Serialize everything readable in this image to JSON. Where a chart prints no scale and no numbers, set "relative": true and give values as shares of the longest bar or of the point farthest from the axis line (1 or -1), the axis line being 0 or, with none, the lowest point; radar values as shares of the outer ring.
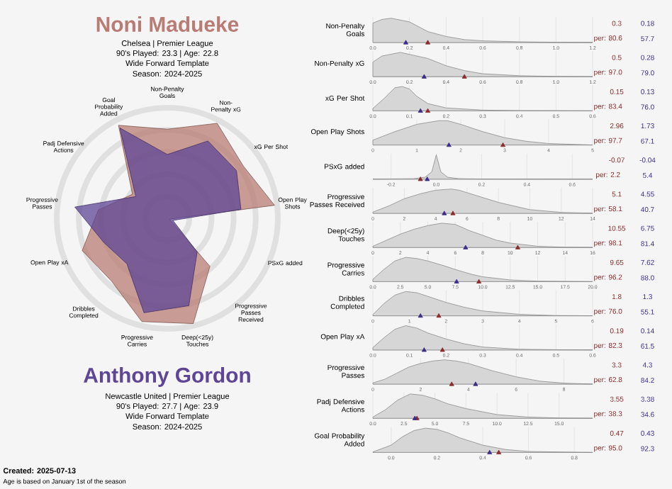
{
  "chart_data": [
    {
      "type": "radar",
      "relative": true,
      "grid": true,
      "categories": [
        "Non-Penalty Goals",
        "Non-Penalty xG",
        "xG Per Shot",
        "Open Play Shots",
        "PSxG added",
        "Progressive Passes Received",
        "Deep(<25y) Touches",
        "Progressive Carries",
        "Dribbles Completed",
        "Open Play xA",
        "Progressive Passes",
        "Padj Defensive Actions",
        "Goal Probability Added"
      ],
      "series": [
        {
          "name": "Noni Madueke",
          "color": "#b97c74",
          "values": [
            0.806,
            0.97,
            0.834,
            0.977,
            0.022,
            0.581,
            0.981,
            0.962,
            0.76,
            0.823,
            0.628,
            0.383,
            0.95
          ]
        },
        {
          "name": "Anthony Gordon",
          "color": "#5e4596",
          "values": [
            0.577,
            0.79,
            0.76,
            0.671,
            0.054,
            0.407,
            0.814,
            0.88,
            0.551,
            0.615,
            0.842,
            0.346,
            0.923
          ]
        }
      ],
      "annotations": [
        "Chelsea  | Premier League",
        "90's Played: 23.3 | Age: 22.8",
        "Wide Forward Template",
        "Season: 2024-2025",
        "Newcastle United  | Premier League",
        "90's Played: 27.7 | Age: 23.9",
        "Wide Forward Template",
        "Season: 2024-2025",
        "Created: 2025-07-13",
        "Age is based on January 1st of the season"
      ]
    },
    {
      "type": "area",
      "relative": true,
      "ylabel": "Non-Penalty Goals",
      "xlim": [
        0,
        1.2
      ],
      "xticks": [
        {
          "value": 0,
          "label": "0.0"
        },
        0.2,
        0.4,
        0.6,
        0.8,
        {
          "value": 1,
          "label": "1.0"
        },
        1.2
      ],
      "grid": "x",
      "series": [
        {
          "color": "#d6d6d6",
          "x": [
            0,
            0.05,
            0.1,
            0.2,
            0.3,
            0.4,
            0.5,
            0.6,
            0.8,
            1.0,
            1.2
          ],
          "values": [
            0.8,
            0.95,
            1,
            0.85,
            0.45,
            0.25,
            0.12,
            0.07,
            0.03,
            0.01,
            0
          ]
        },
        {
          "type": "scatter",
          "marker": "triangle",
          "color": "#8b2b2b",
          "x": [
            0.3
          ],
          "values": [
            0
          ]
        },
        {
          "type": "scatter",
          "marker": "triangle",
          "color": "#3c2d8a",
          "x": [
            0.18
          ],
          "values": [
            0
          ]
        }
      ],
      "annotations": [
        "0.3",
        "per: 80.6",
        "0.18",
        "57.7"
      ]
    },
    {
      "type": "area",
      "relative": true,
      "ylabel": "Non-Penalty xG",
      "xlim": [
        0,
        1.2
      ],
      "xticks": [
        {
          "value": 0,
          "label": "0.0"
        },
        0.2,
        0.4,
        0.6,
        0.8,
        {
          "value": 1,
          "label": "1.0"
        },
        1.2
      ],
      "grid": "x",
      "series": [
        {
          "color": "#d6d6d6",
          "x": [
            0,
            0.05,
            0.15,
            0.3,
            0.4,
            0.5,
            0.6,
            0.8,
            1.0,
            1.2
          ],
          "values": [
            0.6,
            0.85,
            1,
            0.75,
            0.45,
            0.25,
            0.12,
            0.04,
            0.01,
            0
          ]
        },
        {
          "type": "scatter",
          "marker": "triangle",
          "color": "#8b2b2b",
          "x": [
            0.5
          ],
          "values": [
            0
          ]
        },
        {
          "type": "scatter",
          "marker": "triangle",
          "color": "#3c2d8a",
          "x": [
            0.28
          ],
          "values": [
            0
          ]
        }
      ],
      "annotations": [
        "0.5",
        "per: 97.0",
        "0.28",
        "79.0"
      ]
    },
    {
      "type": "area",
      "relative": true,
      "ylabel": "xG Per Shot",
      "xlim": [
        0,
        0.6
      ],
      "xticks": [
        {
          "value": 0,
          "label": "0.0"
        },
        0.1,
        0.2,
        0.3,
        0.4,
        0.5,
        0.6
      ],
      "grid": "x",
      "series": [
        {
          "color": "#d6d6d6",
          "x": [
            0,
            0.03,
            0.06,
            0.08,
            0.1,
            0.12,
            0.15,
            0.2,
            0.3,
            0.4,
            0.6
          ],
          "values": [
            0.1,
            0.5,
            0.95,
            1,
            0.9,
            0.6,
            0.3,
            0.12,
            0.03,
            0.01,
            0
          ]
        },
        {
          "type": "scatter",
          "marker": "triangle",
          "color": "#8b2b2b",
          "x": [
            0.15
          ],
          "values": [
            0
          ]
        },
        {
          "type": "scatter",
          "marker": "triangle",
          "color": "#3c2d8a",
          "x": [
            0.13
          ],
          "values": [
            0
          ]
        }
      ],
      "annotations": [
        "0.15",
        "per: 83.4",
        "0.13",
        "76.0"
      ]
    },
    {
      "type": "area",
      "relative": true,
      "ylabel": "Open Play Shots",
      "xlim": [
        0,
        5
      ],
      "xticks": [
        0,
        1,
        2,
        3,
        4,
        5
      ],
      "grid": "x",
      "series": [
        {
          "color": "#d6d6d6",
          "x": [
            0,
            0.5,
            1,
            1.5,
            1.7,
            2,
            2.5,
            3,
            3.5,
            4,
            5
          ],
          "values": [
            0.2,
            0.55,
            0.85,
            1,
            1,
            0.85,
            0.55,
            0.3,
            0.15,
            0.06,
            0
          ]
        },
        {
          "type": "scatter",
          "marker": "triangle",
          "color": "#8b2b2b",
          "x": [
            2.96
          ],
          "values": [
            0
          ]
        },
        {
          "type": "scatter",
          "marker": "triangle",
          "color": "#3c2d8a",
          "x": [
            1.73
          ],
          "values": [
            0
          ]
        }
      ],
      "annotations": [
        "2.96",
        "per: 97.7",
        "1.73",
        "67.1"
      ]
    },
    {
      "type": "area",
      "relative": true,
      "ylabel": "PSxG added",
      "xlim": [
        -0.28,
        0.69
      ],
      "xticks": [
        -0.2,
        {
          "value": 0,
          "label": "0.0"
        },
        0.2,
        0.4,
        0.6
      ],
      "grid": "x",
      "series": [
        {
          "color": "#d6d6d6",
          "x": [
            -0.28,
            -0.1,
            -0.05,
            -0.02,
            0,
            0.02,
            0.05,
            0.1,
            0.2,
            0.69
          ],
          "values": [
            0,
            0.02,
            0.08,
            0.3,
            1,
            0.3,
            0.08,
            0.02,
            0.005,
            0
          ]
        },
        {
          "type": "scatter",
          "marker": "triangle",
          "color": "#8b2b2b",
          "x": [
            -0.07
          ],
          "values": [
            0
          ]
        },
        {
          "type": "scatter",
          "marker": "triangle",
          "color": "#3c2d8a",
          "x": [
            -0.04
          ],
          "values": [
            0
          ]
        }
      ],
      "annotations": [
        "-0.07",
        "per: 2.2",
        "-0.04",
        "5.4"
      ]
    },
    {
      "type": "area",
      "relative": true,
      "ylabel": "Progressive Passes Received",
      "xlim": [
        0,
        14
      ],
      "xticks": [
        0,
        2,
        4,
        6,
        8,
        10,
        12,
        14
      ],
      "grid": "x",
      "series": [
        {
          "color": "#d6d6d6",
          "x": [
            0,
            1,
            2,
            3,
            4,
            5,
            5.5,
            6.5,
            8,
            10,
            12,
            14
          ],
          "values": [
            0.05,
            0.3,
            0.6,
            0.8,
            0.95,
            1,
            0.95,
            0.75,
            0.45,
            0.15,
            0.04,
            0
          ]
        },
        {
          "type": "scatter",
          "marker": "triangle",
          "color": "#8b2b2b",
          "x": [
            5.1
          ],
          "values": [
            0
          ]
        },
        {
          "type": "scatter",
          "marker": "triangle",
          "color": "#3c2d8a",
          "x": [
            4.55
          ],
          "values": [
            0
          ]
        }
      ],
      "annotations": [
        "5.1",
        "per: 58.1",
        "4.55",
        "40.7"
      ]
    },
    {
      "type": "area",
      "relative": true,
      "ylabel": "Deep(<25y) Touches",
      "xlim": [
        0,
        16
      ],
      "xticks": [
        0,
        2,
        4,
        6,
        8,
        10,
        12,
        14,
        16
      ],
      "grid": "x",
      "series": [
        {
          "color": "#d6d6d6",
          "x": [
            0,
            1,
            2,
            3,
            4,
            5,
            6,
            7,
            8,
            9,
            10,
            12,
            14,
            16
          ],
          "values": [
            0.05,
            0.3,
            0.55,
            0.75,
            0.9,
            1,
            0.95,
            0.7,
            0.5,
            0.3,
            0.18,
            0.05,
            0.01,
            0
          ]
        },
        {
          "type": "scatter",
          "marker": "triangle",
          "color": "#8b2b2b",
          "x": [
            10.55
          ],
          "values": [
            0
          ]
        },
        {
          "type": "scatter",
          "marker": "triangle",
          "color": "#3c2d8a",
          "x": [
            6.75
          ],
          "values": [
            0
          ]
        }
      ],
      "annotations": [
        "10.55",
        "per: 98.1",
        "6.75",
        "81.4"
      ]
    },
    {
      "type": "area",
      "relative": true,
      "ylabel": "Progressive Carries",
      "xlim": [
        0,
        20
      ],
      "xticks": [
        {
          "value": 0,
          "label": "0.0"
        },
        2.5,
        {
          "value": 5,
          "label": "5.0"
        },
        7.5,
        {
          "value": 10,
          "label": "10.0"
        },
        12.5,
        {
          "value": 15,
          "label": "15.0"
        },
        17.5,
        {
          "value": 20,
          "label": "20.0"
        }
      ],
      "grid": "x",
      "series": [
        {
          "color": "#d6d6d6",
          "x": [
            0,
            1,
            2,
            3,
            4,
            5,
            6.5,
            7.5,
            9,
            10,
            12.5,
            15,
            20
          ],
          "values": [
            0.1,
            0.5,
            0.85,
            1,
            0.95,
            0.85,
            0.65,
            0.5,
            0.3,
            0.2,
            0.07,
            0.02,
            0
          ]
        },
        {
          "type": "scatter",
          "marker": "triangle",
          "color": "#8b2b2b",
          "x": [
            9.65
          ],
          "values": [
            0
          ]
        },
        {
          "type": "scatter",
          "marker": "triangle",
          "color": "#3c2d8a",
          "x": [
            7.62
          ],
          "values": [
            0
          ]
        }
      ],
      "annotations": [
        "9.65",
        "per: 96.2",
        "7.62",
        "88.0"
      ]
    },
    {
      "type": "area",
      "relative": true,
      "ylabel": "Dribbles Completed",
      "xlim": [
        0,
        6
      ],
      "xticks": [
        0,
        1,
        2,
        3,
        4,
        5,
        6
      ],
      "grid": "x",
      "series": [
        {
          "color": "#d6d6d6",
          "x": [
            0,
            0.3,
            0.6,
            0.9,
            1.2,
            1.5,
            2,
            2.5,
            3,
            4,
            5,
            6
          ],
          "values": [
            0.05,
            0.5,
            0.85,
            1,
            0.95,
            0.8,
            0.55,
            0.35,
            0.2,
            0.06,
            0.01,
            0
          ]
        },
        {
          "type": "scatter",
          "marker": "triangle",
          "color": "#8b2b2b",
          "x": [
            1.8
          ],
          "values": [
            0
          ]
        },
        {
          "type": "scatter",
          "marker": "triangle",
          "color": "#3c2d8a",
          "x": [
            1.3
          ],
          "values": [
            0
          ]
        }
      ],
      "annotations": [
        "1.8",
        "per: 76.0",
        "1.3",
        "55.1"
      ]
    },
    {
      "type": "area",
      "relative": true,
      "ylabel": "Open Play xA",
      "xlim": [
        0,
        0.6
      ],
      "xticks": [
        {
          "value": 0,
          "label": "0.0"
        },
        0.1,
        0.2,
        0.3,
        0.4,
        0.5,
        0.6
      ],
      "grid": "x",
      "series": [
        {
          "color": "#d6d6d6",
          "x": [
            0,
            0.03,
            0.06,
            0.09,
            0.12,
            0.15,
            0.2,
            0.25,
            0.3,
            0.4,
            0.5,
            0.6
          ],
          "values": [
            0.1,
            0.5,
            0.85,
            1,
            0.9,
            0.7,
            0.45,
            0.25,
            0.12,
            0.03,
            0.01,
            0
          ]
        },
        {
          "type": "scatter",
          "marker": "triangle",
          "color": "#8b2b2b",
          "x": [
            0.19
          ],
          "values": [
            0
          ]
        },
        {
          "type": "scatter",
          "marker": "triangle",
          "color": "#3c2d8a",
          "x": [
            0.14
          ],
          "values": [
            0
          ]
        }
      ],
      "annotations": [
        "0.19",
        "per: 82.3",
        "0.14",
        "61.5"
      ]
    },
    {
      "type": "area",
      "relative": true,
      "ylabel": "Progressive Passes",
      "xlim": [
        0,
        9.2
      ],
      "xticks": [
        0,
        2,
        4,
        6,
        8
      ],
      "grid": "x",
      "series": [
        {
          "color": "#d6d6d6",
          "x": [
            0,
            0.5,
            1,
            1.5,
            2,
            2.5,
            3,
            3.5,
            4,
            5,
            6,
            7,
            8,
            9.2
          ],
          "values": [
            0.05,
            0.2,
            0.45,
            0.7,
            0.85,
            0.95,
            1,
            0.95,
            0.85,
            0.55,
            0.3,
            0.12,
            0.04,
            0
          ]
        },
        {
          "type": "scatter",
          "marker": "triangle",
          "color": "#8b2b2b",
          "x": [
            3.3
          ],
          "values": [
            0
          ]
        },
        {
          "type": "scatter",
          "marker": "triangle",
          "color": "#3c2d8a",
          "x": [
            4.3
          ],
          "values": [
            0
          ]
        }
      ],
      "annotations": [
        "3.3",
        "per: 62.8",
        "4.3",
        "84.2"
      ]
    },
    {
      "type": "area",
      "relative": true,
      "ylabel": "Padj Defensive Actions",
      "xlim": [
        0,
        17.7
      ],
      "xticks": [
        {
          "value": 0,
          "label": "0.0"
        },
        2.5,
        {
          "value": 5,
          "label": "5.0"
        },
        7.5,
        {
          "value": 10,
          "label": "10.0"
        },
        12.5,
        {
          "value": 15,
          "label": "15.0"
        }
      ],
      "grid": "x",
      "series": [
        {
          "color": "#d6d6d6",
          "x": [
            0,
            1,
            2,
            3,
            4,
            5,
            6,
            7.5,
            10,
            12.5,
            15,
            17.7
          ],
          "values": [
            0.05,
            0.35,
            0.75,
            1,
            0.95,
            0.8,
            0.6,
            0.4,
            0.15,
            0.05,
            0.01,
            0
          ]
        },
        {
          "type": "scatter",
          "marker": "triangle",
          "color": "#8b2b2b",
          "x": [
            3.55
          ],
          "values": [
            0
          ]
        },
        {
          "type": "scatter",
          "marker": "triangle",
          "color": "#3c2d8a",
          "x": [
            3.38
          ],
          "values": [
            0
          ]
        }
      ],
      "annotations": [
        "3.55",
        "per: 38.3",
        "3.38",
        "34.6"
      ]
    },
    {
      "type": "area",
      "relative": true,
      "ylabel": "Goal Probability Added",
      "xlim": [
        -0.08,
        0.88
      ],
      "xticks": [
        {
          "value": 0,
          "label": "0.0"
        },
        0.2,
        0.4,
        0.6,
        0.8
      ],
      "grid": "x",
      "series": [
        {
          "color": "#d6d6d6",
          "x": [
            -0.08,
            0,
            0.05,
            0.1,
            0.15,
            0.2,
            0.25,
            0.3,
            0.4,
            0.5,
            0.6,
            0.8,
            0.88
          ],
          "values": [
            0.02,
            0.3,
            0.65,
            0.9,
            1,
            0.95,
            0.8,
            0.6,
            0.3,
            0.12,
            0.04,
            0.01,
            0
          ]
        },
        {
          "type": "scatter",
          "marker": "triangle",
          "color": "#8b2b2b",
          "x": [
            0.47
          ],
          "values": [
            0
          ]
        },
        {
          "type": "scatter",
          "marker": "triangle",
          "color": "#3c2d8a",
          "x": [
            0.43
          ],
          "values": [
            0
          ]
        }
      ],
      "annotations": [
        "0.47",
        "per: 95.0",
        "0.43",
        "92.3"
      ]
    }
  ]
}
